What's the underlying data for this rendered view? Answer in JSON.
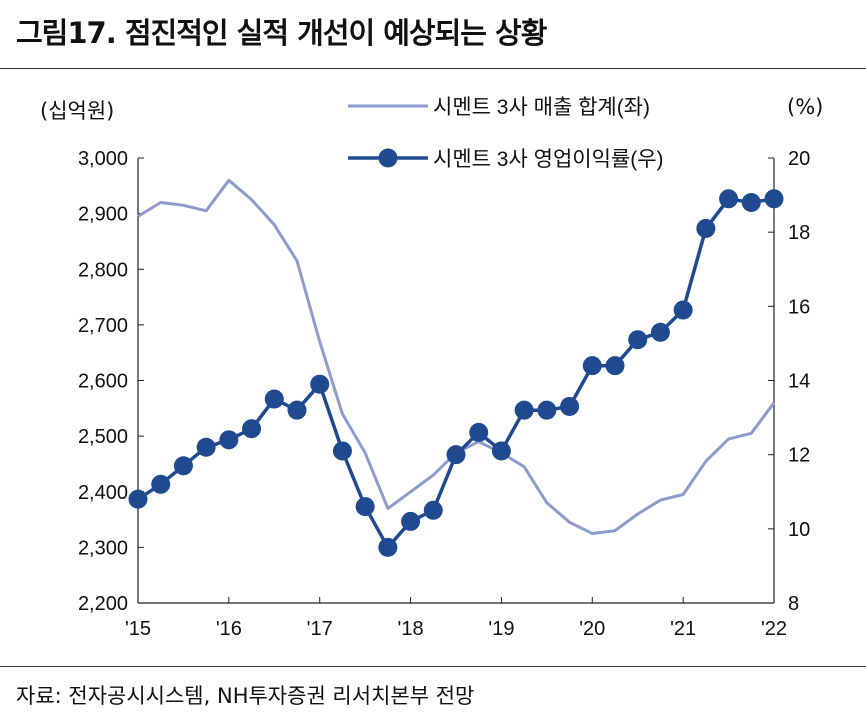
{
  "title": "그림17. 점진적인 실적 개선이 예상되는 상황",
  "source": "자료: 전자공시시스템, NH투자증권 리서치본부 전망",
  "colors": {
    "left_series": "#8d9ccc",
    "right_series": "#1f4a8f",
    "axis": "#222222"
  },
  "chart_data": {
    "type": "line",
    "left_unit": "(십억원)",
    "right_unit": "(%)",
    "x_ticks": [
      "'15",
      "'16",
      "'17",
      "'18",
      "'19",
      "'20",
      "'21",
      "'22"
    ],
    "x_range": [
      2015,
      2022
    ],
    "left_axis": {
      "ylim": [
        2200,
        3000
      ],
      "ticks": [
        "2,200",
        "2,300",
        "2,400",
        "2,500",
        "2,600",
        "2,700",
        "2,800",
        "2,900",
        "3,000"
      ]
    },
    "right_axis": {
      "ylim": [
        8,
        20
      ],
      "ticks": [
        "8",
        "10",
        "12",
        "14",
        "16",
        "18",
        "20"
      ]
    },
    "grid": false,
    "legend_position": "top-right",
    "series": [
      {
        "name": "시멘트 3사 매출 합계(좌)",
        "axis": "left",
        "style": "line",
        "x": [
          2015.0,
          2015.25,
          2015.5,
          2015.75,
          2016.0,
          2016.25,
          2016.5,
          2016.75,
          2017.0,
          2017.25,
          2017.5,
          2017.75,
          2018.0,
          2018.25,
          2018.5,
          2018.75,
          2019.0,
          2019.25,
          2019.5,
          2019.75,
          2020.0,
          2020.25,
          2020.5,
          2020.75,
          2021.0,
          2021.25,
          2021.5,
          2021.75,
          2022.0
        ],
        "values": [
          2895,
          2920,
          2915,
          2905,
          2960,
          2925,
          2880,
          2815,
          2670,
          2540,
          2470,
          2370,
          2400,
          2430,
          2470,
          2490,
          2470,
          2445,
          2380,
          2345,
          2325,
          2330,
          2360,
          2385,
          2395,
          2455,
          2495,
          2505,
          2560
        ]
      },
      {
        "name": "시멘트 3사 영업이익률(우)",
        "axis": "right",
        "style": "line-markers",
        "x": [
          2015.0,
          2015.25,
          2015.5,
          2015.75,
          2016.0,
          2016.25,
          2016.5,
          2016.75,
          2017.0,
          2017.25,
          2017.5,
          2017.75,
          2018.0,
          2018.25,
          2018.5,
          2018.75,
          2019.0,
          2019.25,
          2019.5,
          2019.75,
          2020.0,
          2020.25,
          2020.5,
          2020.75,
          2021.0,
          2021.25,
          2021.5,
          2021.75,
          2022.0
        ],
        "values": [
          10.8,
          11.2,
          11.7,
          12.2,
          12.4,
          12.7,
          13.5,
          13.2,
          13.9,
          12.1,
          10.6,
          9.5,
          10.2,
          10.5,
          12.0,
          12.6,
          12.1,
          13.2,
          13.2,
          13.3,
          14.4,
          14.4,
          15.1,
          15.3,
          15.9,
          18.1,
          18.9,
          18.8,
          18.9
        ]
      }
    ]
  }
}
